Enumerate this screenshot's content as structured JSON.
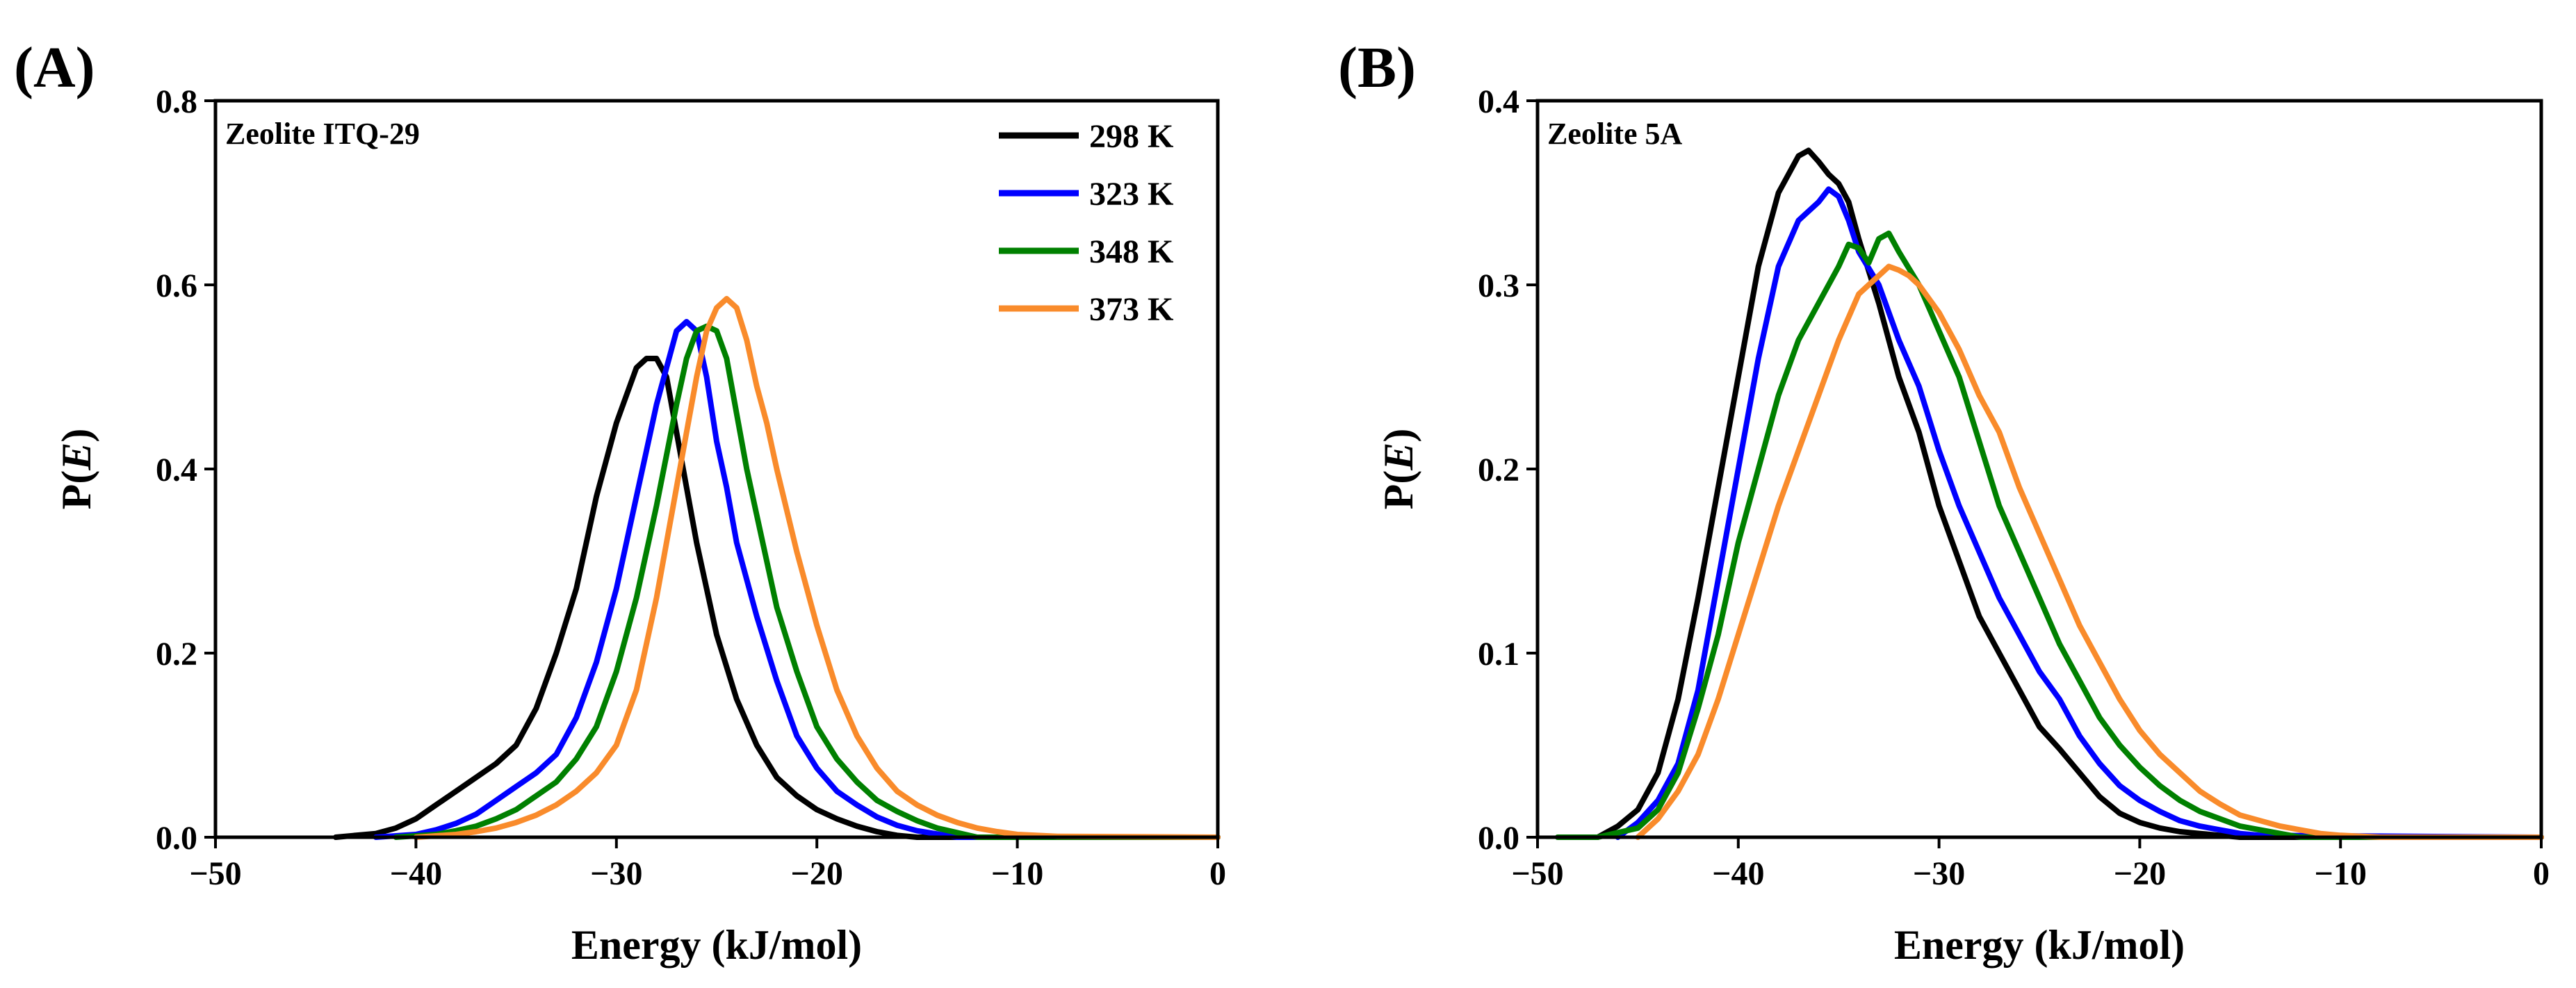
{
  "chart_data": [
    {
      "type": "line",
      "panel_label": "(A)",
      "annotation": "Zeolite ITQ-29",
      "xlabel": "Energy (kJ/mol)",
      "ylabel_prefix": "P(",
      "ylabel_italic": "E",
      "ylabel_suffix": ")",
      "xlim": [
        -50,
        0
      ],
      "ylim": [
        0,
        0.8
      ],
      "xticks": [
        -50,
        -40,
        -30,
        -20,
        -10,
        0
      ],
      "yticks": [
        0.0,
        0.2,
        0.4,
        0.6,
        0.8
      ],
      "xtick_labels": [
        "−50",
        "−40",
        "−30",
        "−20",
        "−10",
        "0"
      ],
      "ytick_labels": [
        "0.0",
        "0.2",
        "0.4",
        "0.6",
        "0.8"
      ],
      "legend": "top-right",
      "series": [
        {
          "name": "298 K",
          "color": "#000000",
          "x": [
            -44,
            -42,
            -41,
            -40,
            -39,
            -38,
            -37,
            -36,
            -35,
            -34,
            -33,
            -32,
            -31,
            -30,
            -29,
            -28.5,
            -28,
            -27.5,
            -27,
            -26.5,
            -26,
            -25.5,
            -25,
            -24,
            -23,
            -22,
            -21,
            -20,
            -19,
            -18,
            -17,
            -16,
            -15,
            0
          ],
          "y": [
            0.0,
            0.004,
            0.01,
            0.02,
            0.035,
            0.05,
            0.065,
            0.08,
            0.1,
            0.14,
            0.2,
            0.27,
            0.37,
            0.45,
            0.51,
            0.52,
            0.52,
            0.5,
            0.44,
            0.38,
            0.32,
            0.27,
            0.22,
            0.15,
            0.1,
            0.065,
            0.045,
            0.03,
            0.02,
            0.012,
            0.006,
            0.002,
            0.0,
            0.0
          ]
        },
        {
          "name": "323 K",
          "color": "#0000ff",
          "x": [
            -42,
            -40,
            -39,
            -38,
            -37,
            -36,
            -35,
            -34,
            -33,
            -32,
            -31,
            -30,
            -29,
            -28,
            -27.5,
            -27,
            -26.5,
            -26,
            -25.5,
            -25,
            -24.5,
            -24,
            -23,
            -22,
            -21,
            -20,
            -19,
            -18,
            -17,
            -16,
            -15,
            -13,
            0
          ],
          "y": [
            0.0,
            0.003,
            0.008,
            0.015,
            0.025,
            0.04,
            0.055,
            0.07,
            0.09,
            0.13,
            0.19,
            0.27,
            0.37,
            0.47,
            0.51,
            0.55,
            0.56,
            0.55,
            0.5,
            0.43,
            0.38,
            0.32,
            0.24,
            0.17,
            0.11,
            0.075,
            0.05,
            0.035,
            0.022,
            0.013,
            0.007,
            0.0,
            0.0
          ]
        },
        {
          "name": "348 K",
          "color": "#008000",
          "x": [
            -41,
            -39,
            -38,
            -37,
            -36,
            -35,
            -34,
            -33,
            -32,
            -31,
            -30,
            -29,
            -28,
            -27,
            -26.5,
            -26,
            -25.5,
            -25,
            -24.5,
            -24,
            -23.5,
            -23,
            -22,
            -21,
            -20,
            -19,
            -18,
            -17,
            -16,
            -15,
            -14,
            -12,
            0
          ],
          "y": [
            0.0,
            0.003,
            0.007,
            0.012,
            0.02,
            0.03,
            0.045,
            0.06,
            0.085,
            0.12,
            0.18,
            0.26,
            0.36,
            0.47,
            0.52,
            0.55,
            0.555,
            0.55,
            0.52,
            0.46,
            0.4,
            0.35,
            0.25,
            0.18,
            0.12,
            0.085,
            0.06,
            0.04,
            0.028,
            0.018,
            0.01,
            0.0,
            0.0
          ]
        },
        {
          "name": "373 K",
          "color": "#f98b2b",
          "x": [
            -40,
            -38,
            -37,
            -36,
            -35,
            -34,
            -33,
            -32,
            -31,
            -30,
            -29,
            -28,
            -27,
            -26,
            -25.5,
            -25,
            -24.5,
            -24,
            -23.5,
            -23,
            -22.5,
            -22,
            -21,
            -20,
            -19,
            -18,
            -17,
            -16,
            -15,
            -14,
            -13,
            -12,
            -11,
            -10,
            -8,
            0
          ],
          "y": [
            0.0,
            0.003,
            0.006,
            0.01,
            0.016,
            0.024,
            0.035,
            0.05,
            0.07,
            0.1,
            0.16,
            0.26,
            0.38,
            0.5,
            0.55,
            0.575,
            0.585,
            0.575,
            0.54,
            0.49,
            0.45,
            0.4,
            0.31,
            0.23,
            0.16,
            0.11,
            0.075,
            0.05,
            0.035,
            0.024,
            0.016,
            0.01,
            0.006,
            0.003,
            0.001,
            0.0
          ]
        }
      ]
    },
    {
      "type": "line",
      "panel_label": "(B)",
      "annotation": "Zeolite 5A",
      "xlabel": "Energy (kJ/mol)",
      "ylabel_prefix": "P(",
      "ylabel_italic": "E",
      "ylabel_suffix": ")",
      "xlim": [
        -50,
        0
      ],
      "ylim": [
        0,
        0.4
      ],
      "xticks": [
        -50,
        -40,
        -30,
        -20,
        -10,
        0
      ],
      "yticks": [
        0.0,
        0.1,
        0.2,
        0.3,
        0.4
      ],
      "xtick_labels": [
        "−50",
        "−40",
        "−30",
        "−20",
        "−10",
        "0"
      ],
      "ytick_labels": [
        "0.0",
        "0.1",
        "0.2",
        "0.3",
        "0.4"
      ],
      "legend": "none",
      "series": [
        {
          "name": "298 K",
          "color": "#000000",
          "x": [
            -47,
            -46,
            -45,
            -44,
            -43,
            -42,
            -41,
            -40,
            -39,
            -38,
            -37,
            -36.5,
            -36,
            -35.5,
            -35,
            -34.5,
            -34,
            -33,
            -32,
            -31,
            -30,
            -29,
            -28,
            -27,
            -26,
            -25,
            -24,
            -23,
            -22,
            -21,
            -20,
            -19,
            -18,
            -17,
            -16,
            -15,
            0
          ],
          "y": [
            0.0,
            0.006,
            0.015,
            0.035,
            0.075,
            0.13,
            0.19,
            0.25,
            0.31,
            0.35,
            0.37,
            0.373,
            0.367,
            0.36,
            0.355,
            0.345,
            0.325,
            0.29,
            0.25,
            0.22,
            0.18,
            0.15,
            0.12,
            0.1,
            0.08,
            0.06,
            0.048,
            0.035,
            0.022,
            0.013,
            0.008,
            0.005,
            0.003,
            0.002,
            0.001,
            0.0,
            0.0
          ]
        },
        {
          "name": "323 K",
          "color": "#0000ff",
          "x": [
            -46,
            -45,
            -44,
            -43,
            -42,
            -41,
            -40,
            -39,
            -38,
            -37,
            -36,
            -35.5,
            -35,
            -34.5,
            -34,
            -33,
            -32,
            -31,
            -30,
            -29,
            -28,
            -27,
            -26,
            -25,
            -24,
            -23,
            -22,
            -21,
            -20,
            -19,
            -18,
            -17,
            -16,
            -15,
            -14,
            0
          ],
          "y": [
            0.0,
            0.008,
            0.02,
            0.04,
            0.08,
            0.14,
            0.2,
            0.26,
            0.31,
            0.335,
            0.345,
            0.352,
            0.348,
            0.335,
            0.318,
            0.3,
            0.27,
            0.245,
            0.21,
            0.18,
            0.155,
            0.13,
            0.11,
            0.09,
            0.075,
            0.055,
            0.04,
            0.028,
            0.02,
            0.014,
            0.009,
            0.006,
            0.004,
            0.002,
            0.001,
            0.0
          ]
        },
        {
          "name": "348 K",
          "color": "#008000",
          "x": [
            -49,
            -47,
            -45,
            -44,
            -43,
            -42,
            -41,
            -40,
            -39,
            -38,
            -37,
            -36,
            -35,
            -34.5,
            -34,
            -33.5,
            -33,
            -32.5,
            -32,
            -31,
            -30,
            -29,
            -28,
            -27,
            -26,
            -25,
            -24,
            -23,
            -22,
            -21,
            -20,
            -19,
            -18,
            -17,
            -16,
            -15,
            -14,
            -12,
            0
          ],
          "y": [
            0.0,
            0.0,
            0.005,
            0.015,
            0.035,
            0.07,
            0.11,
            0.16,
            0.2,
            0.24,
            0.27,
            0.29,
            0.31,
            0.322,
            0.32,
            0.312,
            0.325,
            0.328,
            0.318,
            0.3,
            0.275,
            0.25,
            0.215,
            0.18,
            0.155,
            0.13,
            0.105,
            0.085,
            0.065,
            0.05,
            0.038,
            0.028,
            0.02,
            0.014,
            0.01,
            0.006,
            0.004,
            0.0,
            0.0
          ]
        },
        {
          "name": "373 K",
          "color": "#f98b2b",
          "x": [
            -45,
            -44,
            -43,
            -42,
            -41,
            -40,
            -39,
            -38,
            -37,
            -36,
            -35,
            -34,
            -33.5,
            -33,
            -32.5,
            -32,
            -31.5,
            -31,
            -30,
            -29,
            -28,
            -27,
            -26,
            -25,
            -24,
            -23,
            -22,
            -21,
            -20,
            -19,
            -18,
            -17,
            -16,
            -15,
            -14,
            -13,
            -12,
            -11,
            -10,
            -8,
            0
          ],
          "y": [
            0.0,
            0.01,
            0.025,
            0.045,
            0.075,
            0.11,
            0.145,
            0.18,
            0.21,
            0.24,
            0.27,
            0.295,
            0.3,
            0.305,
            0.31,
            0.308,
            0.305,
            0.3,
            0.285,
            0.265,
            0.24,
            0.22,
            0.19,
            0.165,
            0.14,
            0.115,
            0.095,
            0.075,
            0.058,
            0.045,
            0.035,
            0.025,
            0.018,
            0.012,
            0.009,
            0.006,
            0.004,
            0.002,
            0.001,
            0.0,
            0.0
          ]
        }
      ]
    }
  ]
}
